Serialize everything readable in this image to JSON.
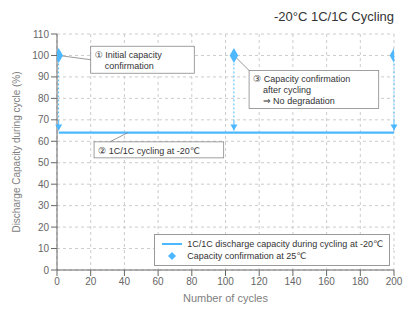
{
  "chart_data": {
    "type": "line",
    "title": "-20°C 1C/1C Cycling",
    "x_label": "Number of cycles",
    "y_label": "Discharge Capacity during cycle (%)",
    "xlim": [
      0,
      200
    ],
    "ylim": [
      0,
      110
    ],
    "xticks": [
      0,
      20,
      40,
      60,
      80,
      100,
      120,
      140,
      160,
      180,
      200
    ],
    "yticks": [
      0,
      10,
      20,
      30,
      40,
      50,
      60,
      70,
      80,
      90,
      100,
      110
    ],
    "grid": true,
    "legend": "lower right",
    "series": [
      {
        "name": "1C/1C discharge capacity during cycling at -20℃",
        "type": "line",
        "line_style": "solid",
        "color": "#4db8ff",
        "x": [
          1,
          200
        ],
        "values": [
          64,
          64
        ]
      },
      {
        "name": "Capacity confirmation at 25℃",
        "type": "scatter",
        "marker": "diamond",
        "color": "#4db8ff",
        "x": [
          1,
          105,
          200
        ],
        "values": [
          100,
          100,
          100
        ]
      }
    ],
    "drop_lines": {
      "from": 100,
      "to": 70,
      "arrow_to": 65
    },
    "annotations": [
      {
        "text": "① Initial capacity\n    confirmation",
        "x": 1,
        "y": 100
      },
      {
        "text": "② 1C/1C cycling at -20℃",
        "x": 42,
        "y": 64
      },
      {
        "text": "③ Capacity confirmation\n    after cycling\n    ⇒ No degradation",
        "x": 105,
        "y": 100
      }
    ]
  }
}
